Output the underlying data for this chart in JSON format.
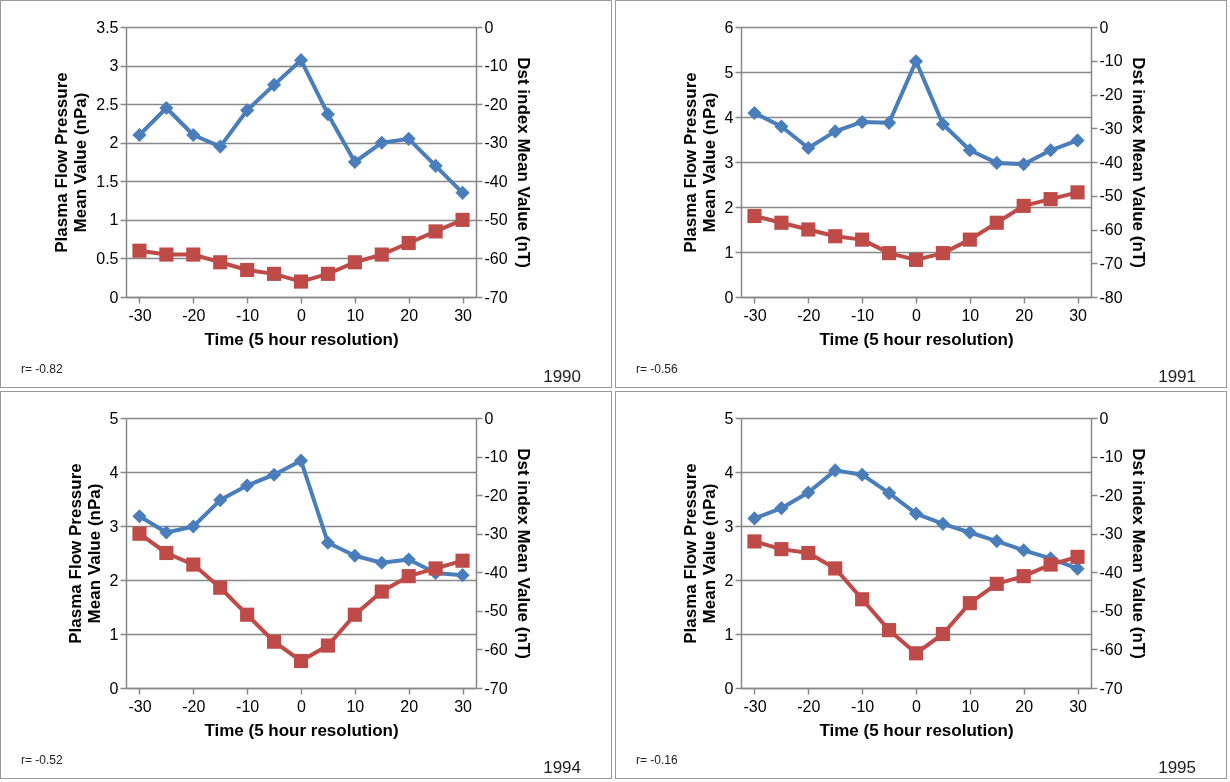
{
  "chart_data": [
    {
      "type": "line",
      "xlabel": "Time (5 hour resolution)",
      "ylabel": "Plasma Flow Pressure Mean Value (nPa)",
      "y2label": "Dst index Mean Value (nT)",
      "x": [
        -30,
        -25,
        -20,
        -15,
        -10,
        -5,
        0,
        5,
        10,
        15,
        20,
        25,
        30
      ],
      "xlim": [
        -32.5,
        32.5
      ],
      "xticks": [
        -30,
        -20,
        -10,
        0,
        10,
        20,
        30
      ],
      "ylim": [
        0,
        3.5
      ],
      "yticks": [
        0,
        0.5,
        1,
        1.5,
        2,
        2.5,
        3,
        3.5
      ],
      "y2lim": [
        -70,
        0
      ],
      "y2ticks": [
        -70,
        -60,
        -50,
        -40,
        -30,
        -20,
        -10,
        0
      ],
      "grid": "y",
      "series": [
        {
          "type": "line",
          "color": "#4a7ebb",
          "marker": "diamond",
          "values": [
            2.1,
            2.45,
            2.1,
            1.95,
            2.42,
            2.75,
            3.07,
            2.37,
            1.75,
            2.0,
            2.05,
            1.7,
            1.35
          ]
        },
        {
          "type": "line",
          "color": "#be4b48",
          "marker": "square",
          "axis": "y2",
          "values": [
            -58,
            -59,
            -59,
            -61,
            -63,
            -64,
            -66,
            -64,
            -61,
            -59,
            -56,
            -53,
            -50
          ]
        }
      ],
      "annotations": [
        "r= -0.82",
        "1990"
      ]
    },
    {
      "type": "line",
      "xlabel": "Time (5 hour resolution)",
      "ylabel": "Plasma Flow Pressure Mean Value (nPa)",
      "y2label": "Dst index Mean Value (nT)",
      "x": [
        -30,
        -25,
        -20,
        -15,
        -10,
        -5,
        0,
        5,
        10,
        15,
        20,
        25,
        30
      ],
      "xlim": [
        -32.5,
        32.5
      ],
      "xticks": [
        -30,
        -20,
        -10,
        0,
        10,
        20,
        30
      ],
      "ylim": [
        0,
        6
      ],
      "yticks": [
        0,
        1,
        2,
        3,
        4,
        5,
        6
      ],
      "y2lim": [
        -80,
        0
      ],
      "y2ticks": [
        -80,
        -70,
        -60,
        -50,
        -40,
        -30,
        -20,
        -10,
        0
      ],
      "grid": "y",
      "series": [
        {
          "type": "line",
          "color": "#4a7ebb",
          "marker": "diamond",
          "values": [
            4.09,
            3.79,
            3.31,
            3.68,
            3.89,
            3.87,
            5.24,
            3.84,
            3.26,
            2.98,
            2.95,
            3.26,
            3.48
          ]
        },
        {
          "type": "line",
          "color": "#be4b48",
          "marker": "square",
          "axis": "y2",
          "values": [
            -56,
            -58,
            -60,
            -62,
            -63,
            -67,
            -69,
            -67,
            -63,
            -58,
            -53,
            -51,
            -49
          ]
        }
      ],
      "annotations": [
        "r= -0.56",
        "1991"
      ]
    },
    {
      "type": "line",
      "xlabel": "Time (5 hour resolution)",
      "ylabel": "Plasma Flow Pressure Mean Value (nPa)",
      "y2label": "Dst index Mean Value (nT)",
      "x": [
        -30,
        -25,
        -20,
        -15,
        -10,
        -5,
        0,
        5,
        10,
        15,
        20,
        25,
        30
      ],
      "xlim": [
        -32.5,
        32.5
      ],
      "xticks": [
        -30,
        -20,
        -10,
        0,
        10,
        20,
        30
      ],
      "ylim": [
        0,
        5
      ],
      "yticks": [
        0,
        1,
        2,
        3,
        4,
        5
      ],
      "y2lim": [
        -70,
        0
      ],
      "y2ticks": [
        -70,
        -60,
        -50,
        -40,
        -30,
        -20,
        -10,
        0
      ],
      "grid": "y",
      "series": [
        {
          "type": "line",
          "color": "#4a7ebb",
          "marker": "diamond",
          "values": [
            3.18,
            2.88,
            2.99,
            3.48,
            3.75,
            3.95,
            4.21,
            2.69,
            2.45,
            2.32,
            2.38,
            2.13,
            2.09
          ]
        },
        {
          "type": "line",
          "color": "#be4b48",
          "marker": "square",
          "axis": "y2",
          "values": [
            -30,
            -35,
            -38,
            -44,
            -51,
            -58,
            -63,
            -59,
            -51,
            -45,
            -41,
            -39,
            -37
          ]
        }
      ],
      "annotations": [
        "r= -0.52",
        "1994"
      ]
    },
    {
      "type": "line",
      "xlabel": "Time (5 hour resolution)",
      "ylabel": "Plasma Flow Pressure Mean Value (nPa)",
      "y2label": "Dst index Mean Value (nT)",
      "x": [
        -30,
        -25,
        -20,
        -15,
        -10,
        -5,
        0,
        5,
        10,
        15,
        20,
        25,
        30
      ],
      "xlim": [
        -32.5,
        32.5
      ],
      "xticks": [
        -30,
        -20,
        -10,
        0,
        10,
        20,
        30
      ],
      "ylim": [
        0,
        5
      ],
      "yticks": [
        0,
        1,
        2,
        3,
        4,
        5
      ],
      "y2lim": [
        -70,
        0
      ],
      "y2ticks": [
        -70,
        -60,
        -50,
        -40,
        -30,
        -20,
        -10,
        0
      ],
      "grid": "y",
      "series": [
        {
          "type": "line",
          "color": "#4a7ebb",
          "marker": "diamond",
          "values": [
            3.14,
            3.33,
            3.62,
            4.03,
            3.95,
            3.61,
            3.23,
            3.04,
            2.88,
            2.72,
            2.55,
            2.4,
            2.21
          ]
        },
        {
          "type": "line",
          "color": "#be4b48",
          "marker": "square",
          "axis": "y2",
          "values": [
            -32,
            -34,
            -35,
            -39,
            -47,
            -55,
            -61,
            -56,
            -48,
            -43,
            -41,
            -38,
            -36
          ]
        }
      ],
      "annotations": [
        "r= -0.16",
        "1995"
      ]
    }
  ]
}
